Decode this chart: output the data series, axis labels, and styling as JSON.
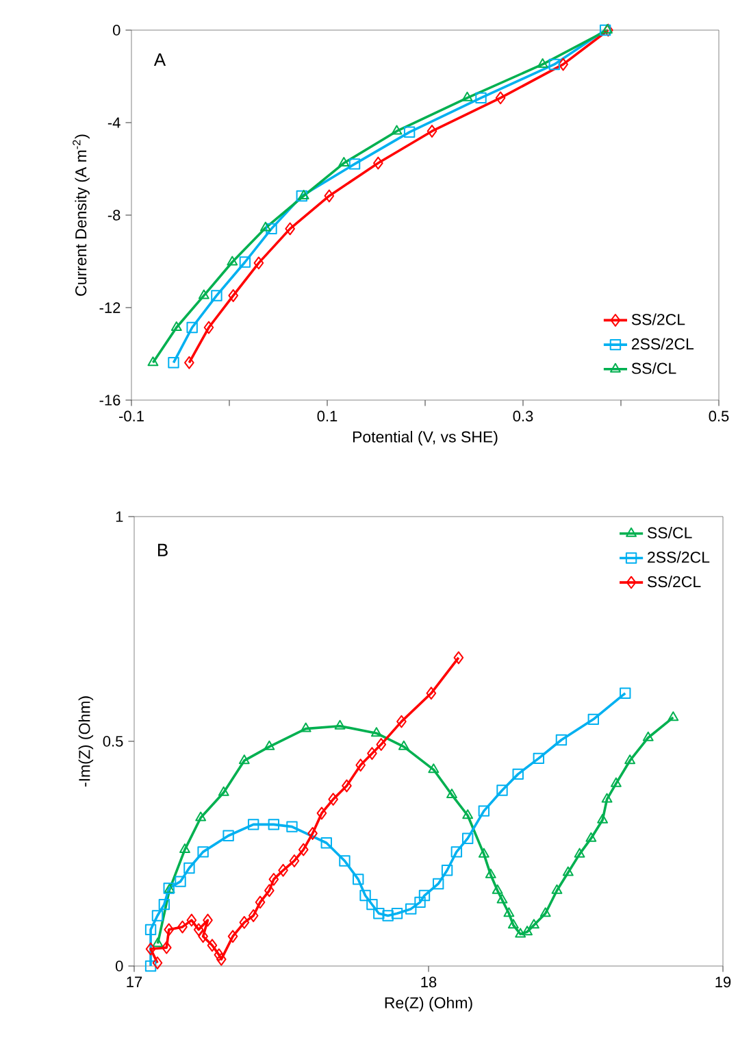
{
  "chart_data": [
    {
      "type": "line",
      "title": "A",
      "xlabel": "Potential (V, vs SHE)",
      "ylabel": "Current Density (A m$^{-2}$)",
      "xlim": [
        -0.1,
        0.5
      ],
      "xticks": [
        -0.1,
        {
          "value": 0,
          "label": null
        },
        0.1,
        {
          "value": 0.2,
          "label": null
        },
        0.3,
        {
          "value": 0.4,
          "label": null
        },
        0.5
      ],
      "ylim": [
        -16,
        0
      ],
      "yticks": [
        -16,
        -12,
        -8,
        -4,
        0
      ],
      "grid": false,
      "legend": "bottom right",
      "line_style": "solid",
      "series": [
        {
          "name": "SS/2CL",
          "color": "#ff0000",
          "marker": "diamond",
          "x": [
            -0.041,
            -0.021,
            0.004,
            0.03,
            0.062,
            0.102,
            0.152,
            0.207,
            0.277,
            0.341,
            0.387
          ],
          "values": [
            -14.38,
            -12.86,
            -11.48,
            -10.07,
            -8.59,
            -7.17,
            -5.75,
            -4.37,
            -2.93,
            -1.48,
            0
          ]
        },
        {
          "name": "2SS/2CL",
          "color": "#00b0f0",
          "marker": "square",
          "x": [
            -0.057,
            -0.038,
            -0.013,
            0.016,
            0.043,
            0.074,
            0.128,
            0.184,
            0.257,
            0.332,
            0.384
          ],
          "values": [
            -14.38,
            -12.86,
            -11.48,
            -10.03,
            -8.59,
            -7.17,
            -5.79,
            -4.41,
            -2.93,
            -1.48,
            0
          ]
        },
        {
          "name": "SS/CL",
          "color": "#00b050",
          "marker": "triangle",
          "x": [
            -0.078,
            -0.054,
            -0.026,
            0.003,
            0.037,
            0.076,
            0.117,
            0.171,
            0.243,
            0.32,
            0.386
          ],
          "values": [
            -14.38,
            -12.86,
            -11.48,
            -10.03,
            -8.55,
            -7.17,
            -5.75,
            -4.37,
            -2.93,
            -1.48,
            0
          ]
        }
      ]
    },
    {
      "type": "line",
      "title": "B",
      "xlabel": "Re(Z) (Ohm)",
      "ylabel": "-Im(Z) (Ohm)",
      "xlim": [
        17,
        19
      ],
      "xticks": [
        17,
        18,
        19
      ],
      "ylim": [
        0,
        1
      ],
      "yticks": [
        0,
        0.5,
        1
      ],
      "grid": false,
      "legend": "top right",
      "line_style": "solid",
      "series": [
        {
          "name": "SS/CL",
          "color": "#00b050",
          "marker": "triangle",
          "x": [
            17.08,
            17.12,
            17.172,
            17.226,
            17.304,
            17.374,
            17.459,
            17.583,
            17.699,
            17.823,
            17.916,
            18.017,
            18.079,
            18.133,
            18.188,
            18.211,
            18.234,
            18.25,
            18.273,
            18.288,
            18.312,
            18.335,
            18.358,
            18.397,
            18.436,
            18.474,
            18.513,
            18.552,
            18.591,
            18.606,
            18.637,
            18.684,
            18.746,
            18.831
          ],
          "values": [
            0.05,
            0.17,
            0.259,
            0.33,
            0.386,
            0.457,
            0.488,
            0.528,
            0.534,
            0.518,
            0.488,
            0.437,
            0.381,
            0.335,
            0.249,
            0.203,
            0.168,
            0.147,
            0.117,
            0.091,
            0.071,
            0.076,
            0.091,
            0.117,
            0.168,
            0.208,
            0.249,
            0.284,
            0.325,
            0.371,
            0.406,
            0.457,
            0.508,
            0.553
          ]
        },
        {
          "name": "2SS/2CL",
          "color": "#00b0f0",
          "marker": "square",
          "x": [
            17.056,
            17.056,
            17.079,
            17.102,
            17.118,
            17.157,
            17.187,
            17.234,
            17.32,
            17.405,
            17.474,
            17.536,
            17.653,
            17.715,
            17.761,
            17.785,
            17.808,
            17.831,
            17.862,
            17.893,
            17.94,
            17.971,
            17.986,
            18.033,
            18.063,
            18.095,
            18.133,
            18.188,
            18.25,
            18.304,
            18.374,
            18.451,
            18.56,
            18.668
          ],
          "values": [
            0.0,
            0.081,
            0.112,
            0.137,
            0.173,
            0.188,
            0.218,
            0.254,
            0.29,
            0.315,
            0.315,
            0.31,
            0.274,
            0.234,
            0.193,
            0.157,
            0.137,
            0.117,
            0.112,
            0.117,
            0.127,
            0.142,
            0.157,
            0.183,
            0.213,
            0.254,
            0.284,
            0.345,
            0.391,
            0.427,
            0.462,
            0.503,
            0.549,
            0.607
          ]
        },
        {
          "name": "SS/2CL",
          "color": "#ff0000",
          "marker": "diamond",
          "x": [
            17.079,
            17.056,
            17.11,
            17.118,
            17.164,
            17.195,
            17.219,
            17.25,
            17.234,
            17.265,
            17.288,
            17.296,
            17.335,
            17.374,
            17.405,
            17.428,
            17.459,
            17.474,
            17.506,
            17.544,
            17.575,
            17.606,
            17.637,
            17.676,
            17.722,
            17.769,
            17.808,
            17.839,
            17.908,
            18.009,
            18.102
          ],
          "values": [
            0.007,
            0.038,
            0.041,
            0.081,
            0.087,
            0.102,
            0.081,
            0.102,
            0.066,
            0.046,
            0.025,
            0.015,
            0.066,
            0.097,
            0.112,
            0.142,
            0.168,
            0.193,
            0.213,
            0.234,
            0.259,
            0.295,
            0.34,
            0.371,
            0.401,
            0.447,
            0.473,
            0.493,
            0.544,
            0.607,
            0.686
          ]
        }
      ]
    }
  ]
}
